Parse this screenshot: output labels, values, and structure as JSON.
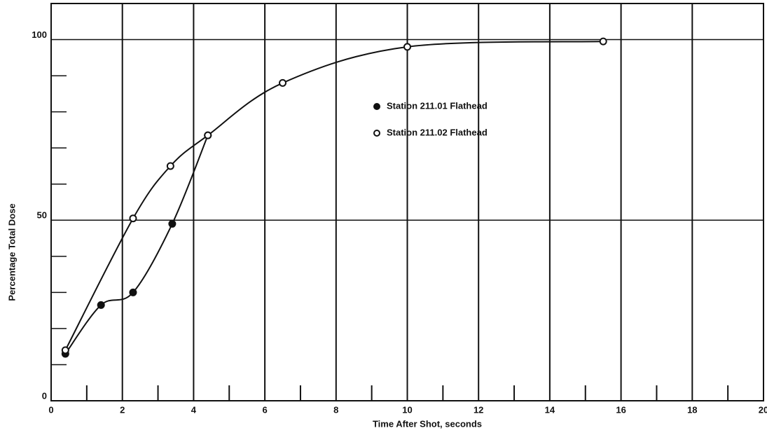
{
  "chart_data": {
    "type": "line",
    "x_label": "Time After Shot, seconds",
    "y_label": "Percentage Total Dose",
    "xlim": [
      0,
      20
    ],
    "xticks": [
      0,
      2,
      4,
      6,
      8,
      10,
      12,
      14,
      16,
      18,
      20
    ],
    "ylim": [
      0,
      110
    ],
    "yticks": [
      0,
      50,
      100
    ],
    "x_minor_ticks": [
      1,
      3,
      5,
      7,
      9,
      11,
      13,
      15,
      17,
      19
    ],
    "y_minor_ticks": [
      10,
      20,
      30,
      40,
      60,
      70,
      80,
      90
    ],
    "grid": true,
    "series": [
      {
        "name": "Station 211.01 Flathead",
        "color": "#111111",
        "marker": "filled",
        "x": [
          0.4,
          1.4,
          2.3,
          3.4,
          4.4
        ],
        "values": [
          13,
          26.5,
          30,
          49,
          73.5
        ]
      },
      {
        "name": "Station 211.02 Flathead",
        "color": "#111111",
        "marker": "open",
        "x": [
          0.4,
          2.3,
          3.35,
          4.4,
          6.5,
          10,
          15.5
        ],
        "values": [
          14,
          50.5,
          65,
          73.5,
          88,
          98,
          99.5
        ]
      }
    ]
  }
}
